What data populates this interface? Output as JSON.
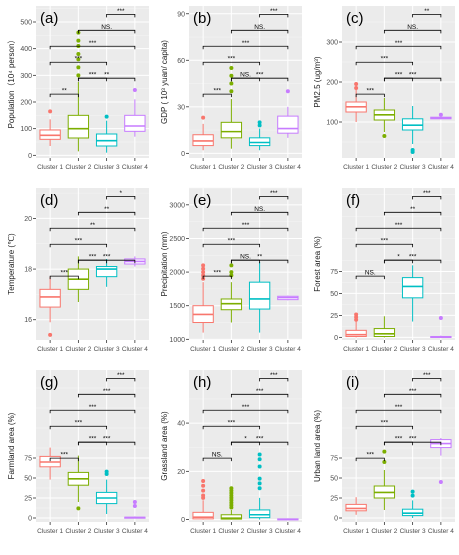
{
  "colors": {
    "panel_bg": "#ebebeb",
    "grid_major": "#ffffff",
    "cluster1": "#f8766d",
    "cluster2": "#7cae00",
    "cluster3": "#00bfc4",
    "cluster4": "#c77cff",
    "text": "#4d4d4d",
    "title_text": "#000000"
  },
  "chart_data": [
    {
      "type": "boxplot",
      "panel": "(a)",
      "ylabel": "Population（10⁴ person）",
      "categories": [
        "Cluster 1",
        "Cluster 2",
        "Cluster 3",
        "Cluster 4"
      ],
      "ylim": [
        -10,
        560
      ],
      "yticks": [
        0,
        100,
        200,
        300,
        400,
        500
      ],
      "boxes": [
        {
          "q1": 60,
          "median": 75,
          "q3": 95,
          "whisker_low": 35,
          "whisker_high": 135,
          "outliers": [
            165
          ]
        },
        {
          "q1": 65,
          "median": 100,
          "q3": 150,
          "whisker_low": 15,
          "whisker_high": 275,
          "outliers": [
            300,
            330,
            360,
            380,
            410,
            430,
            460
          ]
        },
        {
          "q1": 35,
          "median": 55,
          "q3": 80,
          "whisker_low": 10,
          "whisker_high": 130,
          "outliers": [
            145
          ]
        },
        {
          "q1": 90,
          "median": 110,
          "q3": 150,
          "whisker_low": 70,
          "whisker_high": 210,
          "outliers": [
            245
          ]
        }
      ],
      "brackets": [
        {
          "from": "Cluster 1",
          "to": "Cluster 2",
          "label": "**"
        },
        {
          "from": "Cluster 2",
          "to": "Cluster 3",
          "label": "***"
        },
        {
          "from": "Cluster 2",
          "to": "Cluster 4",
          "label": "**"
        },
        {
          "from": "Cluster 1",
          "to": "Cluster 3",
          "label": "***"
        },
        {
          "from": "Cluster 1",
          "to": "Cluster 4",
          "label": "***"
        },
        {
          "from": "Cluster 2",
          "to": "Cluster 4",
          "label": "NS."
        },
        {
          "from": "Cluster 3",
          "to": "Cluster 4",
          "label": "***"
        }
      ]
    },
    {
      "type": "boxplot",
      "panel": "(b)",
      "ylabel": "GDP ( 10³ yuan/ capita)",
      "categories": [
        "Cluster 1",
        "Cluster 2",
        "Cluster 3",
        "Cluster 4"
      ],
      "ylim": [
        -3,
        95
      ],
      "yticks": [
        0,
        30,
        60,
        90
      ],
      "boxes": [
        {
          "q1": 5,
          "median": 8,
          "q3": 12,
          "whisker_low": 2,
          "whisker_high": 19,
          "outliers": [
            23
          ]
        },
        {
          "q1": 10,
          "median": 14,
          "q3": 20,
          "whisker_low": 3,
          "whisker_high": 35,
          "outliers": [
            40,
            45,
            50,
            55
          ]
        },
        {
          "q1": 5,
          "median": 7,
          "q3": 10,
          "whisker_low": 2,
          "whisker_high": 16,
          "outliers": [
            18,
            20
          ]
        },
        {
          "q1": 13,
          "median": 16,
          "q3": 24,
          "whisker_low": 10,
          "whisker_high": 30,
          "outliers": [
            40
          ]
        }
      ],
      "brackets": [
        {
          "from": "Cluster 1",
          "to": "Cluster 2",
          "label": "***"
        },
        {
          "from": "Cluster 2",
          "to": "Cluster 3",
          "label": "NS."
        },
        {
          "from": "Cluster 2",
          "to": "Cluster 4",
          "label": "***"
        },
        {
          "from": "Cluster 1",
          "to": "Cluster 3",
          "label": "***"
        },
        {
          "from": "Cluster 1",
          "to": "Cluster 4",
          "label": "***"
        },
        {
          "from": "Cluster 2",
          "to": "Cluster 4",
          "label": "NS."
        },
        {
          "from": "Cluster 3",
          "to": "Cluster 4",
          "label": "***"
        }
      ]
    },
    {
      "type": "boxplot",
      "panel": "(c)",
      "ylabel": "PM2.5 (ug/m³)",
      "categories": [
        "Cluster 1",
        "Cluster 2",
        "Cluster 3",
        "Cluster 4"
      ],
      "ylim": [
        10,
        390
      ],
      "yticks": [
        100,
        200,
        300
      ],
      "boxes": [
        {
          "q1": 125,
          "median": 138,
          "q3": 150,
          "whisker_low": 100,
          "whisker_high": 180,
          "outliers": [
            185,
            195
          ]
        },
        {
          "q1": 105,
          "median": 118,
          "q3": 130,
          "whisker_low": 75,
          "whisker_high": 160,
          "outliers": [
            65
          ]
        },
        {
          "q1": 80,
          "median": 92,
          "q3": 108,
          "whisker_low": 45,
          "whisker_high": 140,
          "outliers": [
            30,
            25
          ]
        },
        {
          "q1": 108,
          "median": 110,
          "q3": 112,
          "whisker_low": 107,
          "whisker_high": 113,
          "outliers": [
            118
          ]
        }
      ],
      "brackets": [
        {
          "from": "Cluster 1",
          "to": "Cluster 2",
          "label": "***"
        },
        {
          "from": "Cluster 2",
          "to": "Cluster 3",
          "label": "***"
        },
        {
          "from": "Cluster 2",
          "to": "Cluster 4",
          "label": "***"
        },
        {
          "from": "Cluster 1",
          "to": "Cluster 3",
          "label": "***"
        },
        {
          "from": "Cluster 1",
          "to": "Cluster 4",
          "label": "***"
        },
        {
          "from": "Cluster 2",
          "to": "Cluster 4",
          "label": "NS."
        },
        {
          "from": "Cluster 3",
          "to": "Cluster 4",
          "label": "**"
        }
      ]
    },
    {
      "type": "boxplot",
      "panel": "(d)",
      "ylabel": "Temperature (℃)",
      "categories": [
        "Cluster 1",
        "Cluster 2",
        "Cluster 3",
        "Cluster 4"
      ],
      "ylim": [
        15.2,
        21.2
      ],
      "yticks": [
        16,
        18,
        20
      ],
      "boxes": [
        {
          "q1": 16.5,
          "median": 16.9,
          "q3": 17.2,
          "whisker_low": 15.9,
          "whisker_high": 17.7,
          "outliers": [
            15.4
          ]
        },
        {
          "q1": 17.2,
          "median": 17.6,
          "q3": 18.0,
          "whisker_low": 16.7,
          "whisker_high": 18.5,
          "outliers": []
        },
        {
          "q1": 17.7,
          "median": 18.0,
          "q3": 18.1,
          "whisker_low": 17.3,
          "whisker_high": 18.4,
          "outliers": []
        },
        {
          "q1": 18.2,
          "median": 18.3,
          "q3": 18.4,
          "whisker_low": 18.1,
          "whisker_high": 18.5,
          "outliers": []
        }
      ],
      "brackets": [
        {
          "from": "Cluster 1",
          "to": "Cluster 2",
          "label": "***"
        },
        {
          "from": "Cluster 2",
          "to": "Cluster 3",
          "label": "***"
        },
        {
          "from": "Cluster 2",
          "to": "Cluster 4",
          "label": "***"
        },
        {
          "from": "Cluster 1",
          "to": "Cluster 3",
          "label": "***"
        },
        {
          "from": "Cluster 1",
          "to": "Cluster 4",
          "label": "**"
        },
        {
          "from": "Cluster 2",
          "to": "Cluster 4",
          "label": "**"
        },
        {
          "from": "Cluster 3",
          "to": "Cluster 4",
          "label": "*"
        }
      ]
    },
    {
      "type": "boxplot",
      "panel": "(e)",
      "ylabel": "Precipitation (mm)",
      "categories": [
        "Cluster 1",
        "Cluster 2",
        "Cluster 3",
        "Cluster 4"
      ],
      "ylim": [
        990,
        3250
      ],
      "yticks": [
        1000,
        1500,
        2000,
        2500,
        3000
      ],
      "boxes": [
        {
          "q1": 1250,
          "median": 1370,
          "q3": 1500,
          "whisker_low": 1100,
          "whisker_high": 1850,
          "outliers": [
            1900,
            1950,
            2000,
            2050,
            2100
          ]
        },
        {
          "q1": 1440,
          "median": 1530,
          "q3": 1600,
          "whisker_low": 1250,
          "whisker_high": 1850,
          "outliers": [
            1950,
            2000,
            2100
          ]
        },
        {
          "q1": 1450,
          "median": 1600,
          "q3": 1850,
          "whisker_low": 1100,
          "whisker_high": 2150,
          "outliers": []
        },
        {
          "q1": 1590,
          "median": 1620,
          "q3": 1640,
          "whisker_low": 1580,
          "whisker_high": 1650,
          "outliers": []
        }
      ],
      "brackets": [
        {
          "from": "Cluster 1",
          "to": "Cluster 2",
          "label": "***"
        },
        {
          "from": "Cluster 2",
          "to": "Cluster 3",
          "label": "NS."
        },
        {
          "from": "Cluster 2",
          "to": "Cluster 4",
          "label": "**"
        },
        {
          "from": "Cluster 1",
          "to": "Cluster 3",
          "label": "***"
        },
        {
          "from": "Cluster 1",
          "to": "Cluster 4",
          "label": "***"
        },
        {
          "from": "Cluster 2",
          "to": "Cluster 4",
          "label": "NS."
        },
        {
          "from": "Cluster 3",
          "to": "Cluster 4",
          "label": "***"
        }
      ]
    },
    {
      "type": "boxplot",
      "panel": "(f)",
      "ylabel": "Forest area (%)",
      "categories": [
        "Cluster 1",
        "Cluster 2",
        "Cluster 3",
        "Cluster 4"
      ],
      "ylim": [
        -3,
        170
      ],
      "yticks": [
        0,
        25,
        50,
        75
      ],
      "boxes": [
        {
          "q1": 1,
          "median": 3,
          "q3": 8,
          "whisker_low": 0,
          "whisker_high": 18,
          "outliers": [
            20,
            23,
            26
          ]
        },
        {
          "q1": 1,
          "median": 4,
          "q3": 10,
          "whisker_low": 0,
          "whisker_high": 24,
          "outliers": []
        },
        {
          "q1": 45,
          "median": 58,
          "q3": 68,
          "whisker_low": 18,
          "whisker_high": 82,
          "outliers": []
        },
        {
          "q1": 0,
          "median": 0.5,
          "q3": 1,
          "whisker_low": 0,
          "whisker_high": 2,
          "outliers": [
            22
          ]
        }
      ],
      "brackets": [
        {
          "from": "Cluster 1",
          "to": "Cluster 2",
          "label": "NS."
        },
        {
          "from": "Cluster 2",
          "to": "Cluster 3",
          "label": "*"
        },
        {
          "from": "Cluster 2",
          "to": "Cluster 4",
          "label": "***"
        },
        {
          "from": "Cluster 1",
          "to": "Cluster 3",
          "label": "***"
        },
        {
          "from": "Cluster 1",
          "to": "Cluster 4",
          "label": "***"
        },
        {
          "from": "Cluster 2",
          "to": "Cluster 4",
          "label": "**"
        },
        {
          "from": "Cluster 3",
          "to": "Cluster 4",
          "label": "***"
        }
      ]
    },
    {
      "type": "boxplot",
      "panel": "(g)",
      "ylabel": "Farmland area (%)",
      "categories": [
        "Cluster 1",
        "Cluster 2",
        "Cluster 3",
        "Cluster 4"
      ],
      "ylim": [
        -5,
        185
      ],
      "yticks": [
        0,
        25,
        50,
        75
      ],
      "boxes": [
        {
          "q1": 64,
          "median": 70,
          "q3": 77,
          "whisker_low": 48,
          "whisker_high": 88,
          "outliers": []
        },
        {
          "q1": 41,
          "median": 49,
          "q3": 57,
          "whisker_low": 20,
          "whisker_high": 78,
          "outliers": [
            12
          ]
        },
        {
          "q1": 18,
          "median": 25,
          "q3": 32,
          "whisker_low": 5,
          "whisker_high": 48,
          "outliers": [
            55,
            58
          ]
        },
        {
          "q1": 0,
          "median": 0.5,
          "q3": 1,
          "whisker_low": 0,
          "whisker_high": 2,
          "outliers": [
            15,
            20
          ]
        }
      ],
      "brackets": [
        {
          "from": "Cluster 1",
          "to": "Cluster 2",
          "label": "***"
        },
        {
          "from": "Cluster 2",
          "to": "Cluster 3",
          "label": "***"
        },
        {
          "from": "Cluster 2",
          "to": "Cluster 4",
          "label": "***"
        },
        {
          "from": "Cluster 1",
          "to": "Cluster 3",
          "label": "***"
        },
        {
          "from": "Cluster 1",
          "to": "Cluster 4",
          "label": "***"
        },
        {
          "from": "Cluster 2",
          "to": "Cluster 4",
          "label": "***"
        },
        {
          "from": "Cluster 3",
          "to": "Cluster 4",
          "label": "***"
        }
      ]
    },
    {
      "type": "boxplot",
      "panel": "(h)",
      "ylabel": "Grassland area (%)",
      "categories": [
        "Cluster 1",
        "Cluster 2",
        "Cluster 3",
        "Cluster 4"
      ],
      "ylim": [
        -1,
        62
      ],
      "yticks": [
        0,
        20,
        40
      ],
      "boxes": [
        {
          "q1": 0.3,
          "median": 1,
          "q3": 3,
          "whisker_low": 0,
          "whisker_high": 8,
          "outliers": [
            9,
            10,
            12,
            14,
            16
          ]
        },
        {
          "q1": 0.2,
          "median": 0.6,
          "q3": 2,
          "whisker_low": 0,
          "whisker_high": 4,
          "outliers": [
            5,
            6,
            7,
            8,
            9,
            10,
            11,
            12,
            13
          ]
        },
        {
          "q1": 0.8,
          "median": 2,
          "q3": 4,
          "whisker_low": 0,
          "whisker_high": 9,
          "outliers": [
            13,
            15,
            17,
            22,
            25,
            27
          ]
        },
        {
          "q1": 0,
          "median": 0.1,
          "q3": 0.3,
          "whisker_low": 0,
          "whisker_high": 0.5,
          "outliers": []
        }
      ],
      "brackets": [
        {
          "from": "Cluster 1",
          "to": "Cluster 2",
          "label": "NS."
        },
        {
          "from": "Cluster 2",
          "to": "Cluster 3",
          "label": "*"
        },
        {
          "from": "Cluster 2",
          "to": "Cluster 4",
          "label": "***"
        },
        {
          "from": "Cluster 1",
          "to": "Cluster 3",
          "label": "***"
        },
        {
          "from": "Cluster 1",
          "to": "Cluster 4",
          "label": "***"
        },
        {
          "from": "Cluster 2",
          "to": "Cluster 4",
          "label": "***"
        },
        {
          "from": "Cluster 3",
          "to": "Cluster 4",
          "label": "***"
        }
      ]
    },
    {
      "type": "boxplot",
      "panel": "(i)",
      "ylabel": "Urban land area (%)",
      "categories": [
        "Cluster 1",
        "Cluster 2",
        "Cluster 3",
        "Cluster 4"
      ],
      "ylim": [
        -5,
        185
      ],
      "yticks": [
        0,
        25,
        50,
        75
      ],
      "boxes": [
        {
          "q1": 9,
          "median": 12,
          "q3": 17,
          "whisker_low": 4,
          "whisker_high": 26,
          "outliers": []
        },
        {
          "q1": 25,
          "median": 32,
          "q3": 40,
          "whisker_low": 10,
          "whisker_high": 60,
          "outliers": [
            70,
            83
          ]
        },
        {
          "q1": 3,
          "median": 6,
          "q3": 11,
          "whisker_low": 0,
          "whisker_high": 22,
          "outliers": [
            28,
            33
          ]
        },
        {
          "q1": 88,
          "median": 93,
          "q3": 98,
          "whisker_low": 78,
          "whisker_high": 100,
          "outliers": [
            45
          ]
        }
      ],
      "brackets": [
        {
          "from": "Cluster 1",
          "to": "Cluster 2",
          "label": "***"
        },
        {
          "from": "Cluster 2",
          "to": "Cluster 3",
          "label": "***"
        },
        {
          "from": "Cluster 2",
          "to": "Cluster 4",
          "label": "***"
        },
        {
          "from": "Cluster 1",
          "to": "Cluster 3",
          "label": "***"
        },
        {
          "from": "Cluster 1",
          "to": "Cluster 4",
          "label": "***"
        },
        {
          "from": "Cluster 2",
          "to": "Cluster 4",
          "label": "***"
        },
        {
          "from": "Cluster 3",
          "to": "Cluster 4",
          "label": "***"
        }
      ]
    }
  ]
}
